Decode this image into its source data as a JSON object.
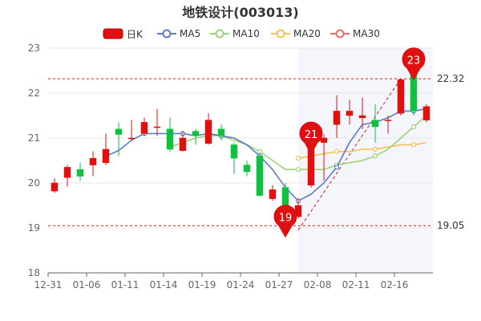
{
  "chart_data": {
    "type": "candlestick",
    "title": "地铁设计(003013)",
    "legend": [
      {
        "key": "kline",
        "label": "日K",
        "color": "#e01010"
      },
      {
        "key": "ma5",
        "label": "MA5",
        "color": "#5b7bc6"
      },
      {
        "key": "ma10",
        "label": "MA10",
        "color": "#9ed27a"
      },
      {
        "key": "ma20",
        "label": "MA20",
        "color": "#f7c24d"
      },
      {
        "key": "ma30",
        "label": "MA30",
        "color": "#ef6b6b"
      }
    ],
    "colors": {
      "up": "#e01010",
      "down": "#10c040",
      "ref_line": "#cc2222",
      "grid": "#e8e8e8"
    },
    "x_tick_labels": [
      {
        "index": 0,
        "label": "12-31"
      },
      {
        "index": 3,
        "label": "01-06"
      },
      {
        "index": 6,
        "label": "01-11"
      },
      {
        "index": 9,
        "label": "01-14"
      },
      {
        "index": 12,
        "label": "01-19"
      },
      {
        "index": 15,
        "label": "01-24"
      },
      {
        "index": 18,
        "label": "01-27"
      },
      {
        "index": 21,
        "label": "02-08"
      },
      {
        "index": 24,
        "label": "02-11"
      },
      {
        "index": 27,
        "label": "02-16"
      }
    ],
    "ylim": [
      18,
      23
    ],
    "y_ticks": [
      18,
      19,
      20,
      21,
      22,
      23
    ],
    "candles": [
      {
        "open": 19.82,
        "close": 20.0,
        "high": 20.1,
        "low": 19.78
      },
      {
        "open": 20.12,
        "close": 20.35,
        "high": 20.4,
        "low": 19.92
      },
      {
        "open": 20.3,
        "close": 20.15,
        "high": 20.45,
        "low": 20.05
      },
      {
        "open": 20.4,
        "close": 20.55,
        "high": 20.7,
        "low": 20.15
      },
      {
        "open": 20.45,
        "close": 20.75,
        "high": 21.1,
        "low": 20.4
      },
      {
        "open": 21.2,
        "close": 21.08,
        "high": 21.35,
        "low": 20.6
      },
      {
        "open": 21.0,
        "close": 21.0,
        "high": 21.4,
        "low": 20.95
      },
      {
        "open": 21.1,
        "close": 21.35,
        "high": 21.45,
        "low": 21.05
      },
      {
        "open": 21.25,
        "close": 21.25,
        "high": 21.65,
        "low": 21.05
      },
      {
        "open": 21.2,
        "close": 20.75,
        "high": 21.45,
        "low": 20.7
      },
      {
        "open": 20.72,
        "close": 21.0,
        "high": 21.15,
        "low": 20.7
      },
      {
        "open": 21.15,
        "close": 21.05,
        "high": 21.2,
        "low": 20.85
      },
      {
        "open": 20.88,
        "close": 21.4,
        "high": 21.55,
        "low": 20.85
      },
      {
        "open": 21.2,
        "close": 21.05,
        "high": 21.3,
        "low": 20.95
      },
      {
        "open": 20.85,
        "close": 20.55,
        "high": 20.9,
        "low": 20.2
      },
      {
        "open": 20.4,
        "close": 20.25,
        "high": 20.5,
        "low": 20.15
      },
      {
        "open": 20.6,
        "close": 19.72,
        "high": 20.65,
        "low": 19.7
      },
      {
        "open": 19.65,
        "close": 19.85,
        "high": 19.95,
        "low": 19.6
      },
      {
        "open": 19.9,
        "close": 19.05,
        "high": 20.0,
        "low": 19.05
      },
      {
        "open": 19.25,
        "close": 19.5,
        "high": 19.65,
        "low": 19.2
      },
      {
        "open": 19.95,
        "close": 20.88,
        "high": 21.0,
        "low": 19.9
      },
      {
        "open": 20.9,
        "close": 21.0,
        "high": 21.08,
        "low": 20.05
      },
      {
        "open": 21.3,
        "close": 21.6,
        "high": 21.95,
        "low": 21.0
      },
      {
        "open": 21.5,
        "close": 21.6,
        "high": 21.85,
        "low": 21.3
      },
      {
        "open": 21.45,
        "close": 21.5,
        "high": 21.9,
        "low": 21.2
      },
      {
        "open": 21.4,
        "close": 21.25,
        "high": 21.75,
        "low": 20.9
      },
      {
        "open": 21.4,
        "close": 21.4,
        "high": 21.5,
        "low": 21.1
      },
      {
        "open": 21.55,
        "close": 22.3,
        "high": 22.32,
        "low": 21.5
      },
      {
        "open": 22.5,
        "close": 21.6,
        "high": 22.55,
        "low": 21.5
      },
      {
        "open": 21.4,
        "close": 21.7,
        "high": 21.75,
        "low": 21.35
      }
    ],
    "ma5": [
      null,
      null,
      null,
      null,
      20.6,
      20.72,
      20.95,
      21.1,
      21.1,
      21.1,
      21.1,
      21.05,
      21.1,
      21.05,
      21.0,
      20.85,
      20.6,
      20.3,
      19.9,
      19.6,
      19.75,
      20.0,
      20.35,
      20.9,
      21.3,
      21.35,
      21.45,
      21.6,
      21.6,
      21.65
    ],
    "ma10": [
      null,
      null,
      null,
      null,
      null,
      null,
      null,
      null,
      null,
      20.8,
      20.9,
      21.0,
      21.05,
      21.05,
      20.95,
      20.85,
      20.7,
      20.5,
      20.3,
      20.3,
      20.3,
      20.3,
      20.4,
      20.45,
      20.5,
      20.6,
      20.75,
      21.0,
      21.25,
      21.5
    ],
    "ma20": [
      null,
      null,
      null,
      null,
      null,
      null,
      null,
      null,
      null,
      null,
      null,
      null,
      null,
      null,
      null,
      null,
      null,
      null,
      null,
      20.55,
      20.6,
      20.65,
      20.7,
      20.7,
      20.75,
      20.75,
      20.8,
      20.85,
      20.85,
      20.9
    ],
    "ref_lines": [
      {
        "value": 22.32,
        "label": "22.32"
      },
      {
        "value": 19.05,
        "label": "19.05"
      }
    ],
    "pins": [
      {
        "index": 18,
        "price": 19.05,
        "label": "19"
      },
      {
        "index": 20,
        "price": 20.9,
        "label": "21"
      },
      {
        "index": 28,
        "price": 22.55,
        "label": "23"
      }
    ],
    "trend_line": {
      "from_index": 19,
      "from_price": 18.95,
      "to_index": 27,
      "to_price": 22.32
    }
  }
}
